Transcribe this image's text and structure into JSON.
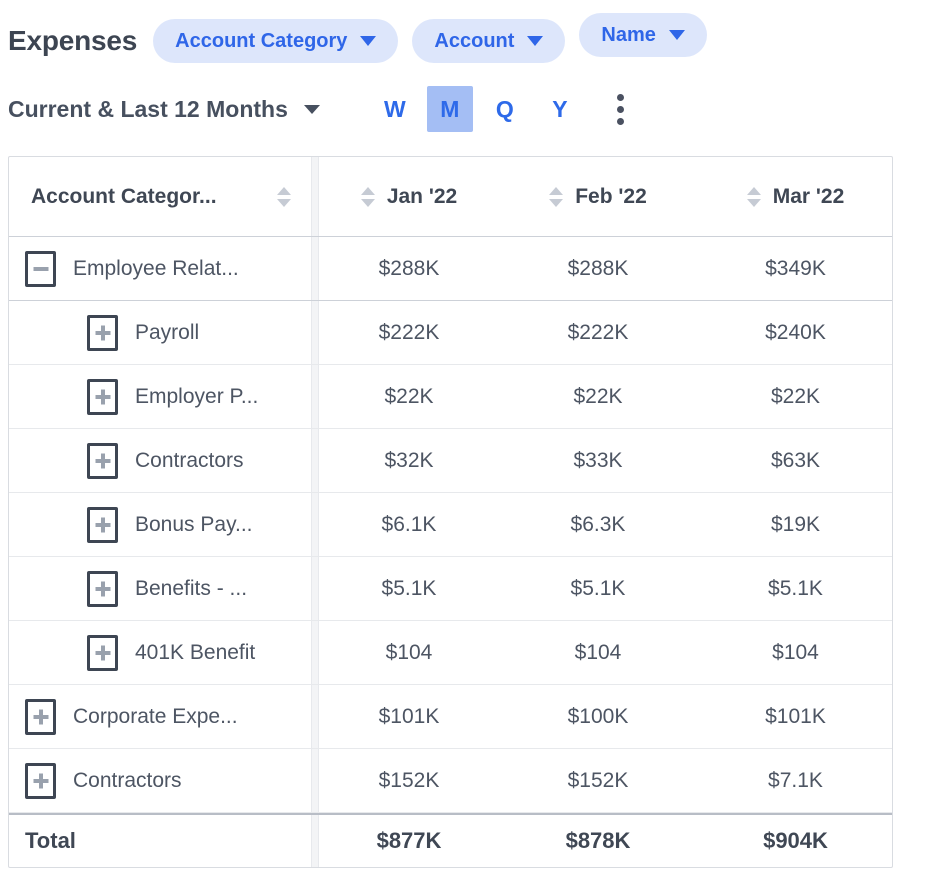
{
  "header": {
    "title": "Expenses",
    "group_pills": [
      {
        "label": "Account Category",
        "raised": false
      },
      {
        "label": "Account",
        "raised": false
      },
      {
        "label": "Name",
        "raised": true
      }
    ],
    "date_range": "Current & Last 12 Months",
    "period_buttons": [
      {
        "label": "W",
        "active": false
      },
      {
        "label": "M",
        "active": true
      },
      {
        "label": "Q",
        "active": false
      },
      {
        "label": "Y",
        "active": false
      }
    ],
    "kebab_menu": "more-options"
  },
  "table": {
    "columns": [
      {
        "label": "Account Categor...",
        "sortable": true
      },
      {
        "label": "Jan '22",
        "sortable": true
      },
      {
        "label": "Feb '22",
        "sortable": true
      },
      {
        "label": "Mar '22",
        "sortable": true
      }
    ],
    "rows": [
      {
        "label": "Employee Relat...",
        "toggle": "minus",
        "level": 0,
        "values": [
          "$288K",
          "$288K",
          "$349K"
        ]
      },
      {
        "label": "Payroll",
        "toggle": "plus",
        "level": 1,
        "values": [
          "$222K",
          "$222K",
          "$240K"
        ]
      },
      {
        "label": "Employer P...",
        "toggle": "plus",
        "level": 1,
        "values": [
          "$22K",
          "$22K",
          "$22K"
        ]
      },
      {
        "label": "Contractors",
        "toggle": "plus",
        "level": 1,
        "values": [
          "$32K",
          "$33K",
          "$63K"
        ]
      },
      {
        "label": "Bonus Pay...",
        "toggle": "plus",
        "level": 1,
        "values": [
          "$6.1K",
          "$6.3K",
          "$19K"
        ]
      },
      {
        "label": "Benefits - ...",
        "toggle": "plus",
        "level": 1,
        "values": [
          "$5.1K",
          "$5.1K",
          "$5.1K"
        ]
      },
      {
        "label": "401K Benefit",
        "toggle": "plus",
        "level": 1,
        "values": [
          "$104",
          "$104",
          "$104"
        ]
      },
      {
        "label": "Corporate Expe...",
        "toggle": "plus",
        "level": 0,
        "values": [
          "$101K",
          "$100K",
          "$101K"
        ]
      },
      {
        "label": "Contractors",
        "toggle": "plus",
        "level": 0,
        "values": [
          "$152K",
          "$152K",
          "$7.1K"
        ]
      }
    ],
    "total": {
      "label": "Total",
      "values": [
        "$877K",
        "$878K",
        "$904K"
      ]
    }
  },
  "colors": {
    "accent_blue": "#2f66e8",
    "pill_bg": "#dde6fb",
    "active_period_bg": "#a4bef4",
    "dark_text": "#3f4754",
    "row_text": "#4d5563",
    "sort_icon": "#c6cbd4",
    "toggle_border": "#3e4653",
    "toggle_glyph": "#99a1ad",
    "table_border": "#d9dce1"
  }
}
